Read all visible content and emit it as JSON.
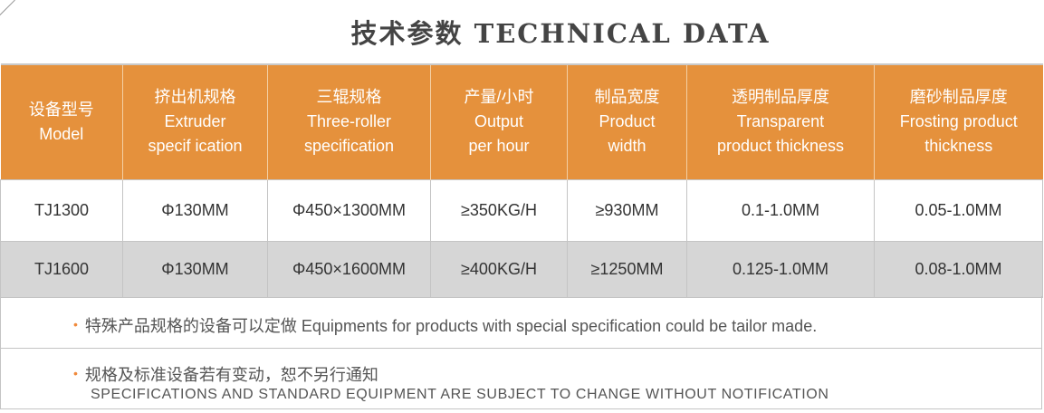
{
  "title": "技术参数 TECHNICAL DATA",
  "colors": {
    "header_bg": "#E5913C",
    "alt_row_bg": "#D6D6D6",
    "bullet": "#F08A3C"
  },
  "headers": [
    {
      "cn": "设备型号",
      "en1": "Model",
      "en2": ""
    },
    {
      "cn": "挤出机规格",
      "en1": "Extruder",
      "en2": "specif ication"
    },
    {
      "cn": "三辊规格",
      "en1": "Three-roller",
      "en2": "specification"
    },
    {
      "cn": "产量/小时",
      "en1": "Output",
      "en2": "per hour"
    },
    {
      "cn": "制品宽度",
      "en1": "Product",
      "en2": "width"
    },
    {
      "cn": "透明制品厚度",
      "en1": "Transparent",
      "en2": "product thickness"
    },
    {
      "cn": "磨砂制品厚度",
      "en1": "Frosting product",
      "en2": "thickness"
    }
  ],
  "rows": [
    [
      "TJ1300",
      "Φ130MM",
      "Φ450×1300MM",
      "≥350KG/H",
      "≥930MM",
      "0.1-1.0MM",
      "0.05-1.0MM"
    ],
    [
      "TJ1600",
      "Φ130MM",
      "Φ450×1600MM",
      "≥400KG/H",
      "≥1250MM",
      "0.125-1.0MM",
      "0.08-1.0MM"
    ]
  ],
  "notes": {
    "note1": "特殊产品规格的设备可以定做 Equipments for products with special specification could be tailor made.",
    "note2_cn": "规格及标准设备若有变动，恕不另行通知",
    "note2_en": "SPECIFICATIONS AND STANDARD EQUIPMENT ARE SUBJECT TO CHANGE WITHOUT NOTIFICATION",
    "bullet": "•"
  }
}
